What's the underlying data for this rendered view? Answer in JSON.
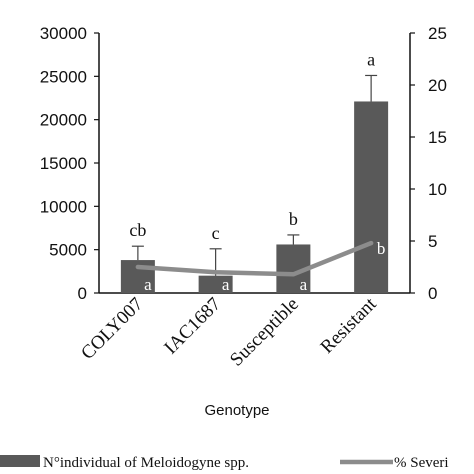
{
  "chart_data": {
    "type": "bar",
    "categories": [
      "COLY007",
      "IAC1687",
      "Susceptible",
      "Resistant"
    ],
    "series": [
      {
        "name": "N°individual of Meloidogyne spp.",
        "type": "bar",
        "axis": "left",
        "values": [
          3800,
          2000,
          5600,
          22100
        ],
        "error": [
          1600,
          3100,
          1100,
          3000
        ],
        "letters": [
          "cb",
          "c",
          "b",
          "a"
        ],
        "color": "#595959"
      },
      {
        "name": "% Severity",
        "type": "line",
        "axis": "right",
        "values": [
          2.5,
          2.0,
          1.8,
          4.8
        ],
        "letters": [
          "a",
          "a",
          "a",
          "b"
        ],
        "color": "#8c8c8c"
      }
    ],
    "xlabel": "Genotype",
    "ylabel": "",
    "ylim": [
      0,
      30000
    ],
    "yticks": [
      "0",
      "5000",
      "10000",
      "15000",
      "20000",
      "25000",
      "30000"
    ],
    "y2lim": [
      0,
      25
    ],
    "y2ticks": [
      "0",
      "5",
      "10",
      "15",
      "20",
      "25"
    ],
    "legend": {
      "position": "bottom",
      "bar_label": "N°individual of Meloidogyne spp.",
      "line_label": "% Severi"
    }
  }
}
